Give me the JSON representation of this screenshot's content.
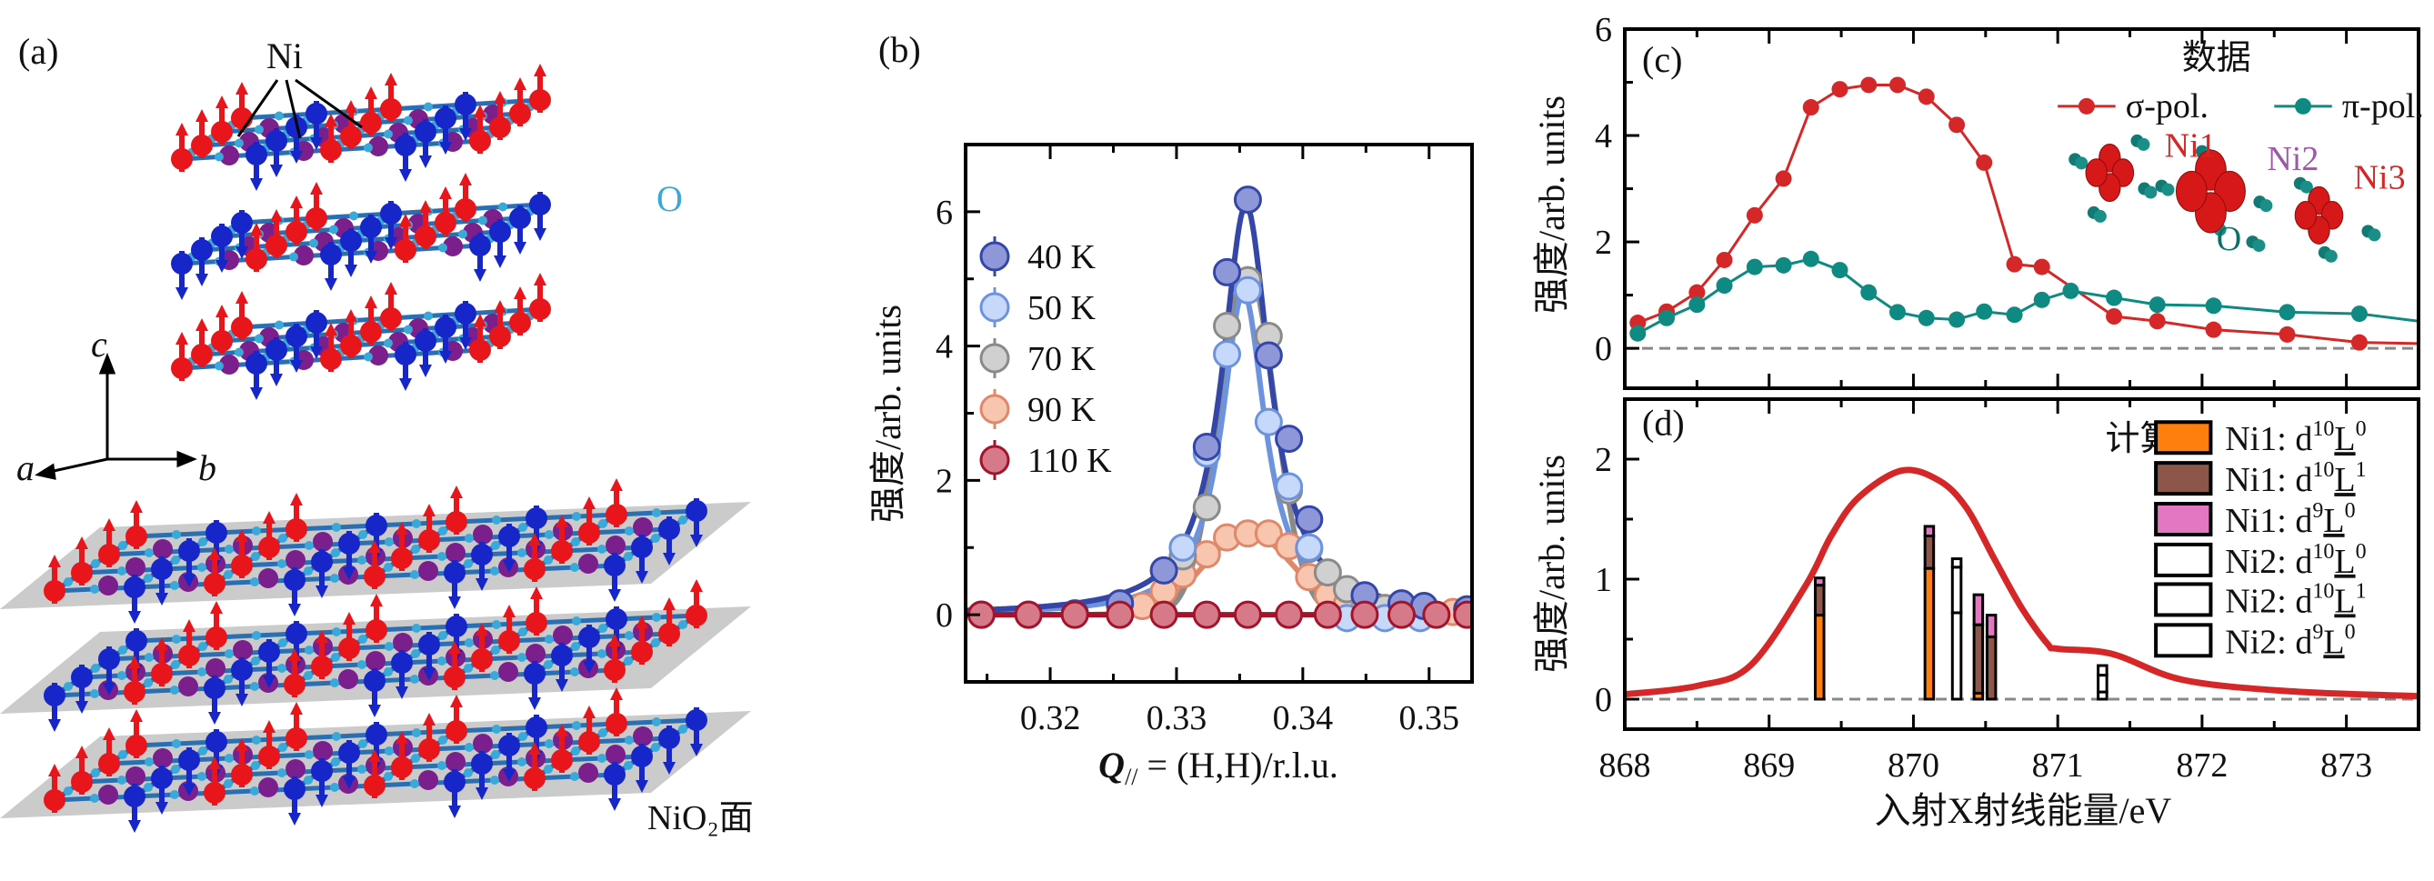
{
  "panel_a": {
    "label": "(a)",
    "ni_label": "Ni",
    "o_label": "O",
    "axes": {
      "c": "c",
      "a": "a",
      "b": "b"
    },
    "plane_label": "NiO₂面",
    "colors": {
      "spin_up": "#e8161b",
      "spin_down": "#1626c8",
      "rare_earth": "#7a1f8c",
      "oxygen": "#39a9d9",
      "bond": "#2b6fb3",
      "plane": "#b9b9b9"
    }
  },
  "chart_data": [
    {
      "panel": "(b)",
      "type": "scatter",
      "xlabel": {
        "symbol": "Q",
        "sub": "//",
        "rest": " = (H,H)/r.l.u."
      },
      "ylabel": "强度/arb. units",
      "xlim": [
        0.3133,
        0.3534
      ],
      "ylim": [
        -1,
        7
      ],
      "xticks": [
        "0.32",
        "0.33",
        "0.34",
        "0.35"
      ],
      "xtick_values": [
        0.32,
        0.33,
        0.34,
        0.35
      ],
      "yticks": [
        "0",
        "2",
        "4",
        "6"
      ],
      "ytick_values": [
        0,
        2,
        4,
        6
      ],
      "legend_position": "upper-left",
      "series": [
        {
          "name": "40 K",
          "edge": "#3446a8",
          "fill": "#8e98d9",
          "x": [
            0.31455,
            0.31828,
            0.32195,
            0.32552,
            0.329,
            0.3324,
            0.334,
            0.33565,
            0.3373,
            0.3389,
            0.3405,
            0.3449,
            0.34782,
            0.3496,
            0.35302
          ],
          "y": [
            0,
            0,
            0.02,
            0.17,
            0.66,
            2.5,
            5.1,
            6.18,
            3.86,
            2.62,
            1.42,
            0.29,
            0.17,
            0.13,
            0.08
          ],
          "fit": {
            "shape": "lorentzian",
            "center": 0.3355,
            "amplitude": 6.1,
            "hwhm": 0.0023
          }
        },
        {
          "name": "50 K",
          "edge": "#6d93df",
          "fill": "#c7d9fb",
          "x": [
            0.3305,
            0.3324,
            0.334,
            0.33565,
            0.3373,
            0.3389,
            0.3405,
            0.3435,
            0.3465,
            0.3493
          ],
          "y": [
            1.0,
            2.4,
            3.88,
            4.83,
            2.87,
            1.91,
            1.0,
            -0.05,
            -0.05,
            -0.05
          ],
          "fit": {
            "shape": "lorentzian",
            "center": 0.3353,
            "amplitude": 4.8,
            "hwhm": 0.0021
          }
        },
        {
          "name": "70 K",
          "edge": "#8a8a8a",
          "fill": "#d0d0d0",
          "x": [
            0.3305,
            0.3324,
            0.334,
            0.33565,
            0.3373,
            0.3389,
            0.3405,
            0.34198,
            0.3435,
            0.3465,
            0.35302
          ],
          "y": [
            0.87,
            1.6,
            4.3,
            4.98,
            4.15,
            1.85,
            0.98,
            0.63,
            0.38,
            0.1,
            0.08
          ],
          "fit": {
            "shape": "gaussian",
            "center": 0.3356,
            "amplitude": 5.15,
            "sigma": 0.0022
          }
        },
        {
          "name": "90 K",
          "edge": "#df886a",
          "fill": "#f8c5ae",
          "x": [
            0.32552,
            0.3273,
            0.329,
            0.3305,
            0.3324,
            0.334,
            0.33565,
            0.3373,
            0.3389,
            0.3405,
            0.34198,
            0.3435,
            0.3449,
            0.3465,
            0.3493,
            0.3519
          ],
          "y": [
            0.13,
            0.13,
            0.35,
            0.6,
            0.9,
            1.15,
            1.21,
            1.21,
            1.02,
            0.56,
            0.29,
            0.17,
            0.13,
            0.1,
            0.07,
            0.04
          ],
          "fit": {
            "shape": "gaussian",
            "center": 0.3357,
            "amplitude": 1.22,
            "sigma": 0.0035
          }
        },
        {
          "name": "110 K",
          "edge": "#a3142b",
          "fill": "#d67a8a",
          "x": [
            0.31455,
            0.31828,
            0.32195,
            0.32552,
            0.329,
            0.3324,
            0.33565,
            0.3389,
            0.34198,
            0.3449,
            0.34782,
            0.35058,
            0.35302
          ],
          "y": [
            0,
            0,
            0,
            0,
            0,
            0,
            0,
            0,
            0,
            0,
            0,
            0,
            0
          ],
          "fit": {
            "shape": "flat",
            "amplitude": 0
          }
        }
      ]
    },
    {
      "panel": "(c)",
      "type": "line",
      "ylabel": "强度/arb. units",
      "xlim": [
        868,
        873.5
      ],
      "ylim": [
        -0.75,
        6
      ],
      "yticks": [
        "0",
        "2",
        "4",
        "6"
      ],
      "ytick_values": [
        0,
        2,
        4,
        6
      ],
      "xtick_values": [
        868,
        869,
        870,
        871,
        872,
        873
      ],
      "reference_line": 0,
      "legend_title": "数据",
      "legend_position": "upper-right",
      "series": [
        {
          "name": "σ-pol.",
          "color": "#d62728",
          "x": [
            868.09,
            868.29,
            868.5,
            868.69,
            868.9,
            869.1,
            869.29,
            869.49,
            869.69,
            869.89,
            870.09,
            870.3,
            870.49,
            870.7,
            870.89,
            871.39,
            871.69,
            872.08,
            872.59,
            873.09,
            873.5
          ],
          "y": [
            0.48,
            0.69,
            1.05,
            1.66,
            2.5,
            3.19,
            4.53,
            4.87,
            4.95,
            4.95,
            4.73,
            4.2,
            3.49,
            1.58,
            1.53,
            0.6,
            0.51,
            0.35,
            0.26,
            0.11,
            0.09
          ],
          "markers_until": 873.09
        },
        {
          "name": "π-pol.",
          "color": "#0e8a83",
          "x": [
            868.09,
            868.29,
            868.5,
            868.69,
            868.9,
            869.1,
            869.29,
            869.49,
            869.69,
            869.89,
            870.09,
            870.3,
            870.49,
            870.7,
            870.89,
            871.09,
            871.39,
            871.69,
            872.08,
            872.59,
            873.09,
            873.5
          ],
          "y": [
            0.28,
            0.57,
            0.82,
            1.18,
            1.53,
            1.56,
            1.68,
            1.47,
            1.05,
            0.68,
            0.57,
            0.54,
            0.69,
            0.63,
            0.91,
            1.08,
            0.95,
            0.82,
            0.8,
            0.68,
            0.65,
            0.51
          ],
          "markers_until": 873.09
        }
      ],
      "inset": {
        "sites": [
          "Ni1",
          "Ni2",
          "Ni3"
        ],
        "oxygen": "O",
        "site_colors": [
          "#d62728",
          "#9b59a6",
          "#d62728"
        ],
        "oxygen_color": "#0e6f6a"
      }
    },
    {
      "panel": "(d)",
      "type": "bar",
      "stacked": true,
      "ylabel": "强度/arb. units",
      "xlabel": "入射X射线能量/eV",
      "xlim": [
        868,
        873.5
      ],
      "ylim": [
        -0.25,
        2.5
      ],
      "xticks": [
        "868",
        "869",
        "870",
        "871",
        "872",
        "873"
      ],
      "xtick_values": [
        868,
        869,
        870,
        871,
        872,
        873
      ],
      "yticks": [
        "0",
        "1",
        "2"
      ],
      "ytick_values": [
        0,
        1,
        2
      ],
      "reference_line": 0,
      "legend_title": "计算",
      "legend_position": "upper-right",
      "components": [
        {
          "site": "Ni1",
          "d": "10",
          "L": "0",
          "color": "#ff7f0e"
        },
        {
          "site": "Ni1",
          "d": "10",
          "L": "1",
          "color": "#8c564b"
        },
        {
          "site": "Ni1",
          "d": "9",
          "L": "0",
          "color": "#e377c2"
        },
        {
          "site": "Ni2",
          "d": "10",
          "L": "0",
          "color": "#ffffff"
        },
        {
          "site": "Ni2",
          "d": "10",
          "L": "1",
          "color": "#ffffff"
        },
        {
          "site": "Ni2",
          "d": "9",
          "L": "0",
          "color": "#ffffff"
        }
      ],
      "bars": [
        {
          "x": 869.35,
          "stack": [
            0.7,
            0.25,
            0.06,
            0,
            0,
            0
          ]
        },
        {
          "x": 870.11,
          "stack": [
            1.09,
            0.27,
            0.08,
            0,
            0,
            0
          ]
        },
        {
          "x": 870.3,
          "stack": [
            0,
            0,
            0,
            0.72,
            0.38,
            0.07
          ]
        },
        {
          "x": 870.45,
          "stack": [
            0.05,
            0.57,
            0.25,
            0,
            0,
            0
          ]
        },
        {
          "x": 870.54,
          "stack": [
            0,
            0.52,
            0.18,
            0,
            0,
            0
          ]
        },
        {
          "x": 871.31,
          "stack": [
            0,
            0,
            0,
            0.06,
            0.14,
            0.08
          ]
        }
      ],
      "curve": {
        "color": "#d62728",
        "x": [
          868,
          868.5,
          868.87,
          869.25,
          869.43,
          869.62,
          869.92,
          870.18,
          870.37,
          870.56,
          870.75,
          870.93,
          871.0,
          871.38,
          871.87,
          872.62,
          873.5
        ],
        "y": [
          0.04,
          0.11,
          0.28,
          0.94,
          1.36,
          1.68,
          1.905,
          1.82,
          1.59,
          1.17,
          0.76,
          0.46,
          0.42,
          0.376,
          0.16,
          0.065,
          0.025
        ]
      }
    }
  ]
}
